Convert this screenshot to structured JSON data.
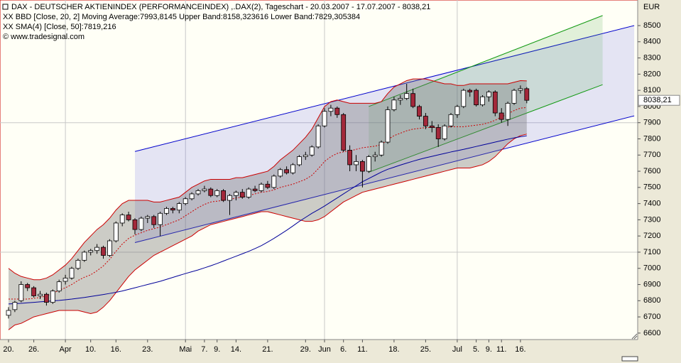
{
  "chart_data": {
    "type": "candlestick",
    "title": "DAX - DEUTSCHER AKTIENINDEX (PERFORMANCEINDEX) ,.DAX(2), Tageschart - 20.03.2007 - 17.07.2007 - 8038,21",
    "indicator_labels": [
      {
        "text": "XX BBD [Close, 20, 2] Moving Average:7993,8145 Upper Band:8158,323616 Lower Band:7829,305384",
        "color": "#cc0000"
      },
      {
        "text": "XX SMA(4) [Close, 50]:7819,216",
        "color": "#000099"
      }
    ],
    "copyright": "© www.tradesignal.com",
    "y_axis_label": "EUR",
    "ylim": [
      6560,
      8658
    ],
    "yticks": [
      6600,
      6700,
      6800,
      6900,
      7000,
      7100,
      7200,
      7300,
      7400,
      7500,
      7600,
      7700,
      7800,
      7900,
      8000,
      8100,
      8200,
      8300,
      8400,
      8500
    ],
    "hgrid": [
      7100,
      7900
    ],
    "vgrid": [
      9,
      28,
      50,
      71
    ],
    "last_price": {
      "value": 8038.21,
      "label": "8038,21"
    },
    "categories": [
      "20.",
      null,
      null,
      null,
      "26.",
      null,
      null,
      null,
      null,
      "Apr",
      null,
      null,
      null,
      "10.",
      null,
      null,
      null,
      "16.",
      null,
      null,
      null,
      null,
      "23.",
      null,
      null,
      null,
      null,
      null,
      "Mai",
      null,
      null,
      "7.",
      null,
      "9.",
      null,
      null,
      "14.",
      null,
      null,
      null,
      null,
      "21.",
      null,
      null,
      null,
      null,
      null,
      "29.",
      null,
      null,
      "Jun",
      null,
      null,
      "6.",
      null,
      null,
      "11.",
      null,
      null,
      null,
      null,
      "18.",
      null,
      null,
      null,
      null,
      "25.",
      null,
      null,
      null,
      null,
      "Jul",
      null,
      null,
      "5.",
      null,
      "9.",
      null,
      "11.",
      null,
      null,
      "16.",
      null
    ],
    "candle_colors": {
      "up": "#ffffff",
      "down": "#a3283a",
      "outline": "#000000"
    },
    "ohlc": [
      [
        6710,
        6760,
        6690,
        6740
      ],
      [
        6745,
        6800,
        6730,
        6790
      ],
      [
        6800,
        6920,
        6790,
        6900
      ],
      [
        6900,
        6910,
        6860,
        6880
      ],
      [
        6880,
        6890,
        6820,
        6830
      ],
      [
        6830,
        6860,
        6810,
        6840
      ],
      [
        6840,
        6850,
        6770,
        6790
      ],
      [
        6790,
        6870,
        6780,
        6860
      ],
      [
        6860,
        6930,
        6850,
        6917
      ],
      [
        6920,
        6960,
        6900,
        6940
      ],
      [
        6940,
        7010,
        6930,
        7000
      ],
      [
        7000,
        7060,
        6990,
        7050
      ],
      [
        7050,
        7110,
        7040,
        7100
      ],
      [
        7100,
        7120,
        7080,
        7110
      ],
      [
        7110,
        7150,
        7090,
        7130
      ],
      [
        7130,
        7140,
        7060,
        7080
      ],
      [
        7080,
        7180,
        7070,
        7170
      ],
      [
        7170,
        7290,
        7160,
        7280
      ],
      [
        7280,
        7340,
        7260,
        7330
      ],
      [
        7330,
        7350,
        7290,
        7300
      ],
      [
        7300,
        7310,
        7210,
        7240
      ],
      [
        7240,
        7320,
        7230,
        7310
      ],
      [
        7310,
        7330,
        7280,
        7320
      ],
      [
        7320,
        7330,
        7250,
        7270
      ],
      [
        7270,
        7350,
        7200,
        7340
      ],
      [
        7340,
        7380,
        7330,
        7370
      ],
      [
        7370,
        7380,
        7340,
        7360
      ],
      [
        7360,
        7410,
        7340,
        7400
      ],
      [
        7400,
        7440,
        7390,
        7430
      ],
      [
        7430,
        7470,
        7420,
        7460
      ],
      [
        7460,
        7490,
        7450,
        7480
      ],
      [
        7480,
        7510,
        7470,
        7490
      ],
      [
        7490,
        7500,
        7440,
        7450
      ],
      [
        7450,
        7490,
        7440,
        7480
      ],
      [
        7480,
        7490,
        7410,
        7420
      ],
      [
        7420,
        7460,
        7330,
        7450
      ],
      [
        7450,
        7480,
        7420,
        7470
      ],
      [
        7470,
        7490,
        7430,
        7440
      ],
      [
        7440,
        7500,
        7430,
        7490
      ],
      [
        7490,
        7510,
        7470,
        7480
      ],
      [
        7480,
        7530,
        7470,
        7520
      ],
      [
        7520,
        7540,
        7490,
        7500
      ],
      [
        7500,
        7580,
        7490,
        7570
      ],
      [
        7570,
        7620,
        7560,
        7610
      ],
      [
        7610,
        7630,
        7580,
        7590
      ],
      [
        7590,
        7650,
        7580,
        7640
      ],
      [
        7640,
        7700,
        7630,
        7690
      ],
      [
        7690,
        7720,
        7670,
        7700
      ],
      [
        7700,
        7760,
        7690,
        7750
      ],
      [
        7750,
        7890,
        7740,
        7880
      ],
      [
        7880,
        7990,
        7870,
        7970
      ],
      [
        7970,
        8010,
        7940,
        7990
      ],
      [
        7990,
        8000,
        7930,
        7950
      ],
      [
        7950,
        7960,
        7720,
        7730
      ],
      [
        7730,
        7760,
        7600,
        7640
      ],
      [
        7640,
        7700,
        7600,
        7660
      ],
      [
        7660,
        7670,
        7500,
        7600
      ],
      [
        7600,
        7700,
        7590,
        7690
      ],
      [
        7690,
        7720,
        7660,
        7700
      ],
      [
        7700,
        7790,
        7690,
        7780
      ],
      [
        7780,
        8000,
        7770,
        7980
      ],
      [
        7980,
        8060,
        7970,
        8040
      ],
      [
        8040,
        8070,
        8010,
        8050
      ],
      [
        8050,
        8140,
        8040,
        8080
      ],
      [
        8080,
        8110,
        7990,
        8000
      ],
      [
        8000,
        8010,
        7920,
        7940
      ],
      [
        7940,
        7960,
        7860,
        7880
      ],
      [
        7880,
        7910,
        7840,
        7870
      ],
      [
        7870,
        7890,
        7750,
        7800
      ],
      [
        7800,
        7890,
        7790,
        7880
      ],
      [
        7880,
        7960,
        7870,
        7950
      ],
      [
        7950,
        8010,
        7930,
        8000
      ],
      [
        8000,
        8110,
        7990,
        8100
      ],
      [
        8100,
        8110,
        8060,
        8090
      ],
      [
        8100,
        8110,
        8000,
        8010
      ],
      [
        8010,
        8070,
        8000,
        8060
      ],
      [
        8060,
        8100,
        8030,
        8090
      ],
      [
        8090,
        8100,
        7940,
        7960
      ],
      [
        7960,
        7990,
        7900,
        7920
      ],
      [
        7920,
        8030,
        7880,
        8020
      ],
      [
        8020,
        8110,
        8010,
        8100
      ],
      [
        8100,
        8130,
        8080,
        8110
      ],
      [
        8110,
        8120,
        8020,
        8038.21
      ]
    ],
    "band_fill": "rgba(110,110,110,0.35)",
    "series": [
      {
        "name": "Upper Band",
        "color": "#cc0000",
        "dash": false,
        "values": [
          7000,
          6970,
          6950,
          6940,
          6930,
          6930,
          6940,
          6960,
          6990,
          7020,
          7060,
          7110,
          7160,
          7200,
          7240,
          7270,
          7310,
          7360,
          7400,
          7420,
          7420,
          7420,
          7420,
          7410,
          7410,
          7420,
          7430,
          7440,
          7470,
          7500,
          7520,
          7540,
          7550,
          7550,
          7550,
          7550,
          7560,
          7560,
          7570,
          7580,
          7590,
          7600,
          7630,
          7670,
          7700,
          7730,
          7770,
          7810,
          7860,
          7930,
          8000,
          8030,
          8040,
          8030,
          8020,
          8020,
          8020,
          8020,
          8020,
          8030,
          8080,
          8120,
          8140,
          8160,
          8170,
          8170,
          8170,
          8160,
          8150,
          8140,
          8140,
          8130,
          8130,
          8140,
          8140,
          8140,
          8140,
          8140,
          8140,
          8140,
          8150,
          8160,
          8158.32
        ]
      },
      {
        "name": "Lower Band",
        "color": "#cc0000",
        "dash": false,
        "values": [
          6620,
          6650,
          6660,
          6680,
          6700,
          6710,
          6720,
          6730,
          6740,
          6740,
          6740,
          6740,
          6730,
          6720,
          6730,
          6760,
          6800,
          6850,
          6900,
          6950,
          6990,
          7020,
          7050,
          7080,
          7100,
          7120,
          7140,
          7160,
          7180,
          7200,
          7230,
          7250,
          7270,
          7280,
          7290,
          7300,
          7310,
          7320,
          7330,
          7340,
          7350,
          7350,
          7340,
          7330,
          7320,
          7310,
          7300,
          7290,
          7290,
          7300,
          7320,
          7350,
          7380,
          7410,
          7430,
          7450,
          7470,
          7480,
          7490,
          7500,
          7510,
          7520,
          7530,
          7540,
          7550,
          7560,
          7570,
          7580,
          7590,
          7600,
          7610,
          7620,
          7620,
          7620,
          7630,
          7640,
          7660,
          7690,
          7730,
          7770,
          7800,
          7820,
          7829.31
        ]
      },
      {
        "name": "Moving Average",
        "color": "#cc0000",
        "dash": true,
        "values": [
          6810,
          6810,
          6810,
          6810,
          6815,
          6820,
          6830,
          6845,
          6865,
          6880,
          6900,
          6925,
          6945,
          6960,
          6985,
          7015,
          7055,
          7105,
          7150,
          7185,
          7205,
          7220,
          7235,
          7245,
          7255,
          7270,
          7285,
          7300,
          7325,
          7350,
          7375,
          7395,
          7410,
          7415,
          7420,
          7425,
          7435,
          7440,
          7450,
          7460,
          7470,
          7475,
          7485,
          7500,
          7510,
          7520,
          7535,
          7550,
          7575,
          7615,
          7660,
          7690,
          7710,
          7720,
          7725,
          7735,
          7745,
          7750,
          7755,
          7765,
          7795,
          7820,
          7835,
          7850,
          7860,
          7865,
          7870,
          7870,
          7870,
          7870,
          7875,
          7875,
          7875,
          7880,
          7885,
          7890,
          7900,
          7915,
          7935,
          7955,
          7975,
          7990,
          7993.81
        ]
      },
      {
        "name": "SMA 50",
        "color": "#000099",
        "dash": false,
        "values": [
          6780,
          6782,
          6784,
          6787,
          6790,
          6793,
          6796,
          6799,
          6802,
          6806,
          6810,
          6815,
          6820,
          6826,
          6832,
          6838,
          6845,
          6852,
          6860,
          6870,
          6880,
          6890,
          6900,
          6910,
          6920,
          6932,
          6944,
          6956,
          6968,
          6979,
          6990,
          7003,
          7016,
          7030,
          7045,
          7060,
          7075,
          7090,
          7105,
          7122,
          7140,
          7162,
          7185,
          7210,
          7235,
          7262,
          7290,
          7315,
          7340,
          7362,
          7385,
          7410,
          7435,
          7460,
          7485,
          7510,
          7535,
          7555,
          7575,
          7595,
          7612,
          7625,
          7638,
          7650,
          7662,
          7673,
          7683,
          7692,
          7701,
          7710,
          7719,
          7727,
          7735,
          7744,
          7753,
          7762,
          7771,
          7780,
          7789,
          7798,
          7806,
          7813,
          7819.22
        ]
      }
    ],
    "channels": [
      {
        "color": "#0000cc",
        "fill": "rgba(90,90,230,0.16)",
        "x": [
          20,
          99
        ],
        "upper": [
          7722,
          8500
        ],
        "lower": [
          7159,
          7942
        ]
      },
      {
        "color": "#119911",
        "fill": "rgba(90,170,90,0.18)",
        "x": [
          57,
          94
        ],
        "upper": [
          8000,
          8562
        ],
        "lower": [
          7594,
          8135
        ]
      }
    ]
  }
}
